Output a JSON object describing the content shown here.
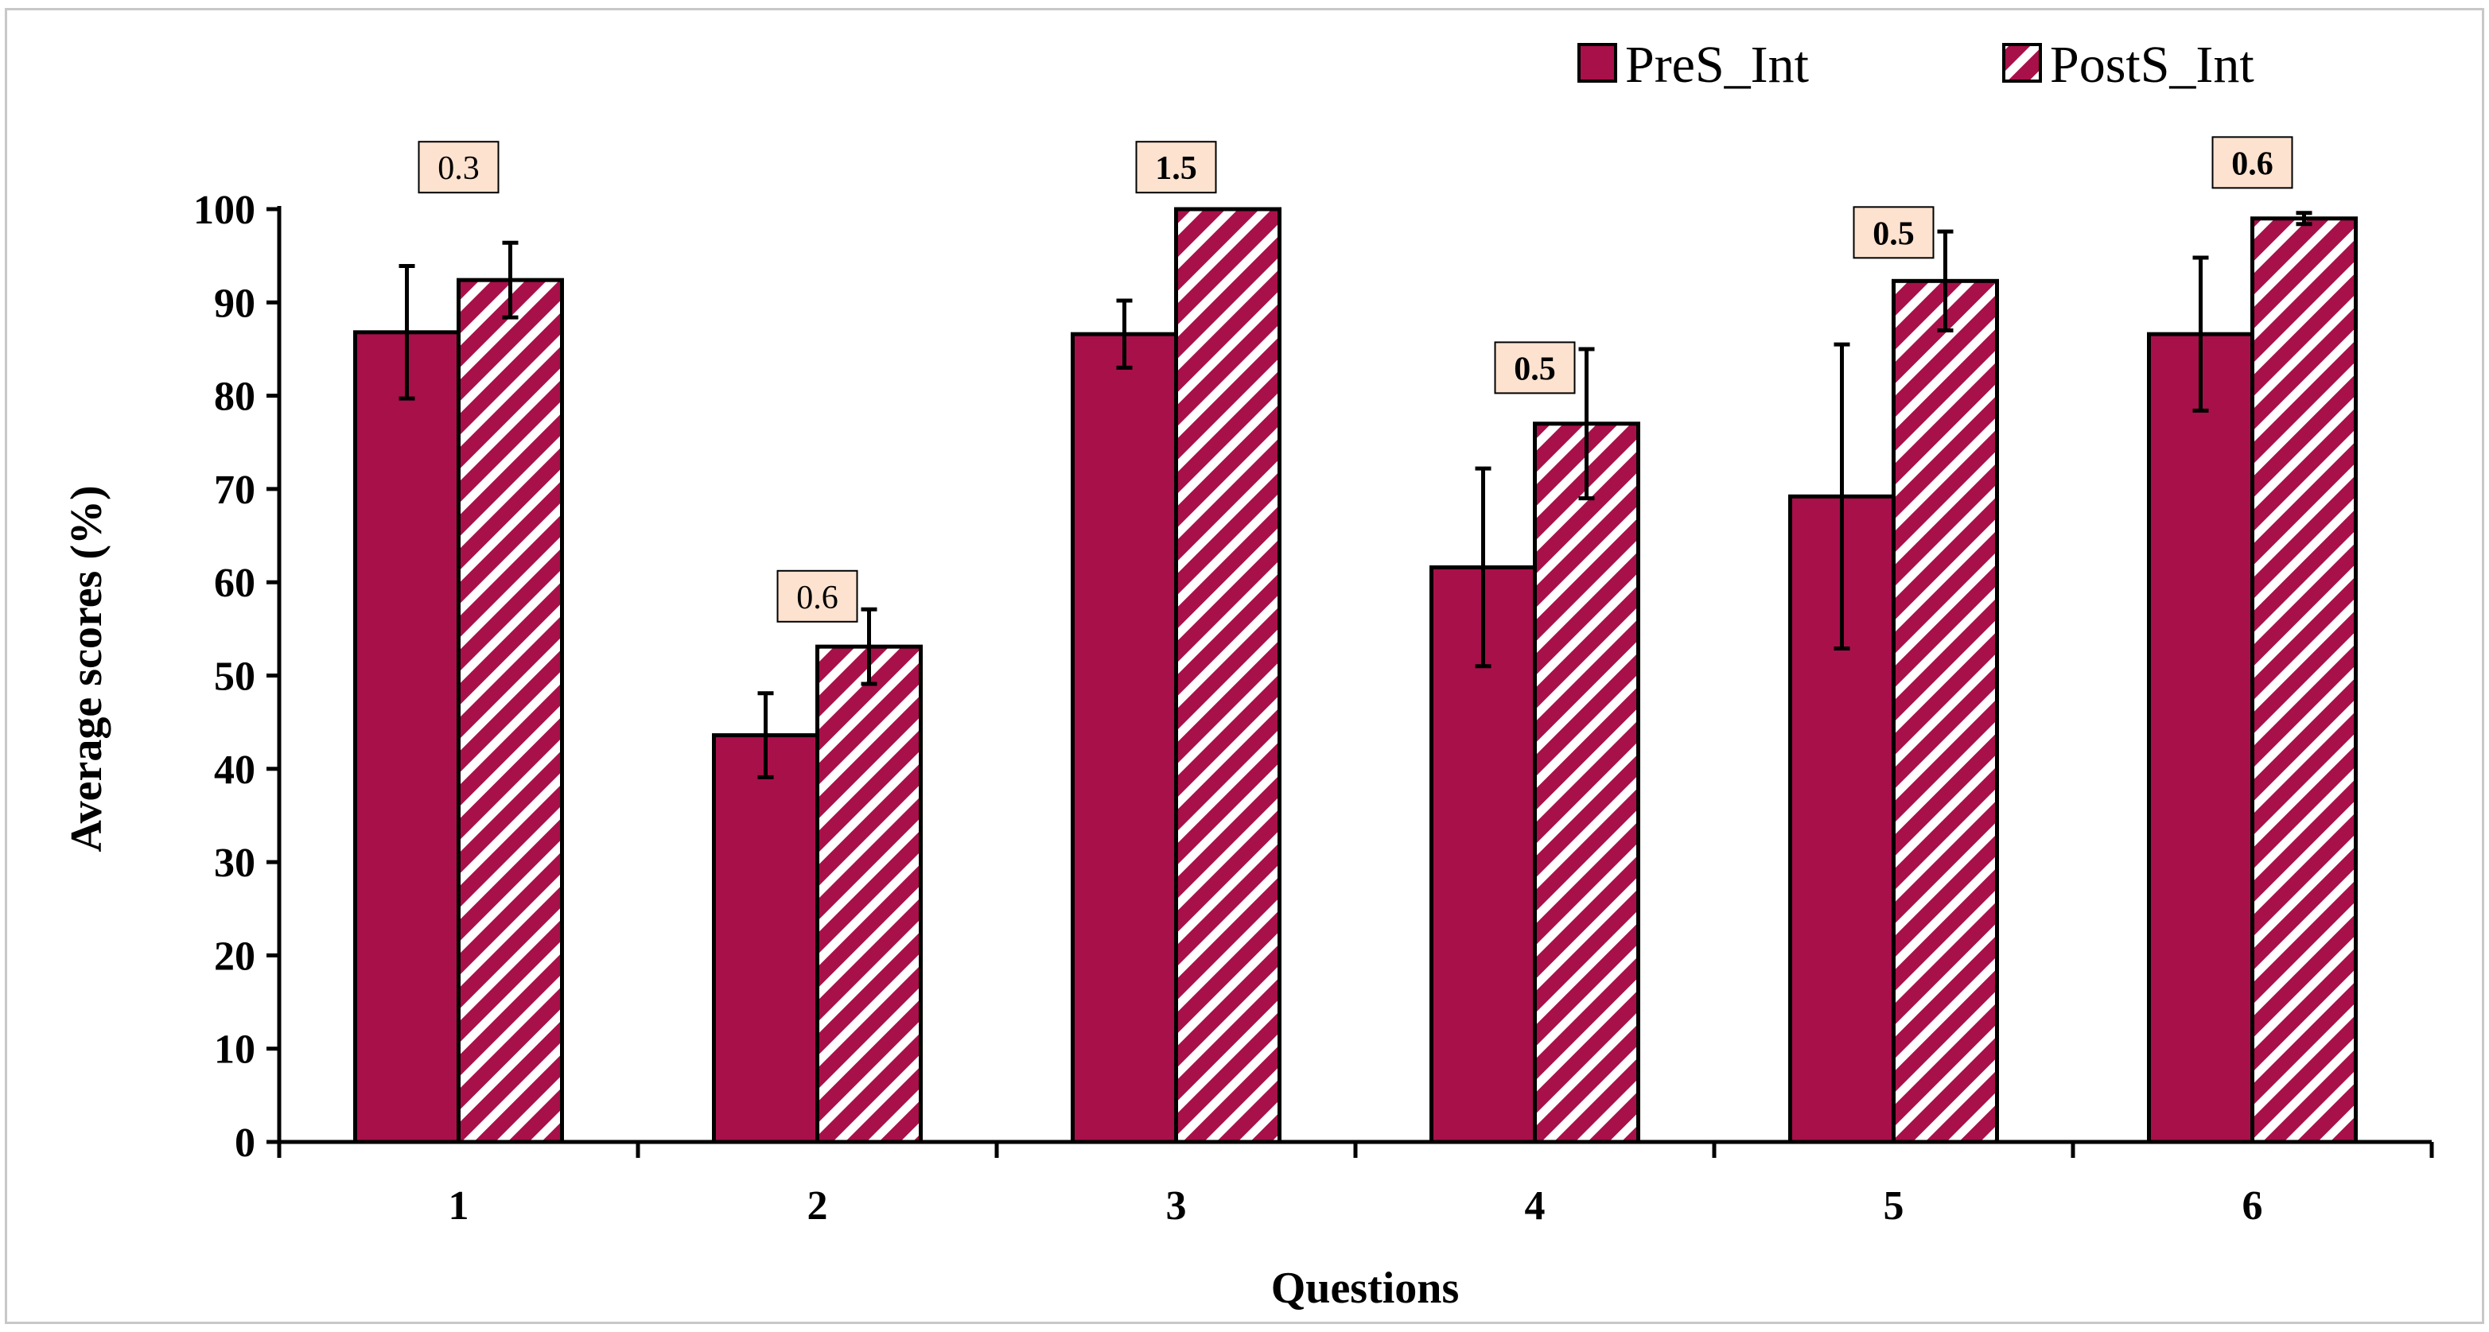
{
  "chart_data": {
    "type": "bar",
    "categories": [
      "1",
      "2",
      "3",
      "4",
      "5",
      "6"
    ],
    "series": [
      {
        "name": "PreS_Int",
        "values": [
          86.8,
          43.6,
          86.6,
          61.6,
          69.2,
          86.6
        ],
        "errors": [
          7.1,
          4.5,
          3.6,
          10.6,
          16.3,
          8.2
        ],
        "color": "#a8104a",
        "pattern": "solid"
      },
      {
        "name": "PostS_Int",
        "values": [
          92.4,
          53.1,
          100.0,
          77.0,
          92.3,
          99.0
        ],
        "errors": [
          4.0,
          4.0,
          0,
          8.0,
          5.3,
          0.6
        ],
        "color": "#a8104a",
        "pattern": "diagonal-hatch"
      }
    ],
    "annotations": [
      {
        "category": "1",
        "text": "0.3",
        "bold": false,
        "y": 104.5
      },
      {
        "category": "2",
        "text": "0.6",
        "bold": false,
        "y": 58.5
      },
      {
        "category": "3",
        "text": "1.5",
        "bold": true,
        "y": 104.5
      },
      {
        "category": "4",
        "text": "0.5",
        "bold": true,
        "y": 83.0
      },
      {
        "category": "5",
        "text": "0.5",
        "bold": true,
        "y": 97.5
      },
      {
        "category": "6",
        "text": "0.6",
        "bold": true,
        "y": 105.0
      }
    ],
    "annotation_box_color": "#fde2cf",
    "xlabel": "Questions",
    "ylabel": "Average scores (%)",
    "ylim": [
      0,
      100
    ],
    "yticks": [
      0,
      10,
      20,
      30,
      40,
      50,
      60,
      70,
      80,
      90,
      100
    ],
    "grid": false,
    "legend_position": "top-right"
  }
}
